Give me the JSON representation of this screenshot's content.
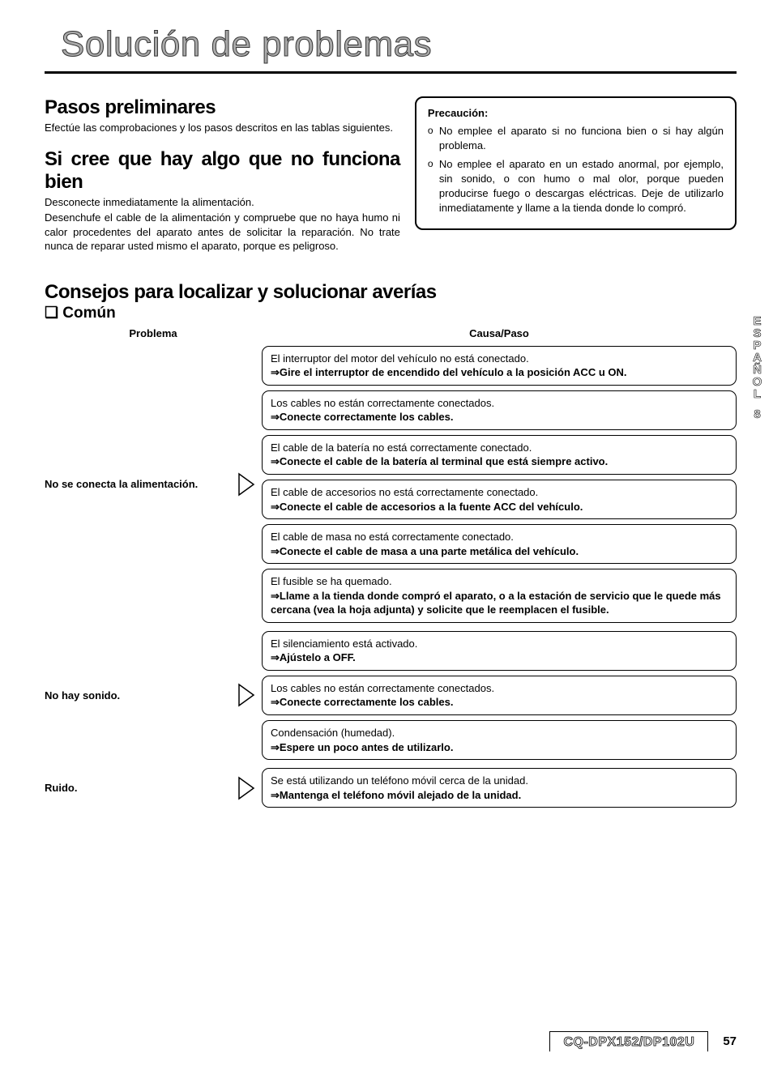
{
  "title": "Solución de problemas",
  "section1": {
    "heading": "Pasos preliminares",
    "text": "Efectúe las comprobaciones y los pasos descritos en las tablas siguientes."
  },
  "section2": {
    "heading": "Si cree que hay algo que no funciona bien",
    "text1": "Desconecte inmediatamente la alimentación.",
    "text2": "Desenchufe el cable de la alimentación y compruebe que no haya humo ni calor procedentes del aparato antes de solicitar la reparación. No trate nunca de reparar usted mismo el aparato, porque es peligroso."
  },
  "caution": {
    "label": "Precaución:",
    "items": [
      "No emplee el aparato si no funciona bien o si hay algún problema.",
      "No emplee el aparato en un estado anormal, por ejemplo, sin sonido, o con humo o mal olor, porque pueden producirse fuego o descargas eléctricas. Deje de utilizarlo inmediatamente y llame a la tienda donde lo compró."
    ]
  },
  "tips": {
    "heading": "Consejos para localizar y solucionar averías",
    "sub": "❏ Común",
    "col_problem": "Problema",
    "col_cause": "Causa/Paso"
  },
  "rows": [
    {
      "problem": "No se conecta la alimentación.",
      "justify": true,
      "causes": [
        {
          "c": "El interruptor del motor del vehículo no está conectado.",
          "s": "⇒Gire el interruptor de encendido del vehículo a la posición ACC u ON."
        },
        {
          "c": "Los cables no están correctamente conectados.",
          "s": "⇒Conecte correctamente los cables."
        },
        {
          "c": "El cable de la batería no está correctamente conectado.",
          "s": "⇒Conecte el cable de la batería al terminal que está siempre activo."
        },
        {
          "c": "El cable de accesorios no está correctamente conectado.",
          "s": "⇒Conecte el cable de accesorios a la fuente ACC del vehículo."
        },
        {
          "c": "El cable de masa no está correctamente conectado.",
          "s": "⇒Conecte el cable de masa a una parte metálica del vehículo."
        },
        {
          "c": "El fusible se ha quemado.",
          "s": "⇒Llame a la tienda donde compró el aparato, o a la estación de servicio que le quede más cercana (vea la hoja adjunta) y solicite que le reemplacen el fusible."
        }
      ]
    },
    {
      "problem": "No hay sonido.",
      "justify": false,
      "causes": [
        {
          "c": "El silenciamiento está activado.",
          "s": "⇒Ajústelo a OFF."
        },
        {
          "c": "Los cables no están correctamente conectados.",
          "s": "⇒Conecte correctamente los cables."
        },
        {
          "c": "Condensación (humedad).",
          "s": "⇒Espere un poco antes de utilizarlo."
        }
      ]
    },
    {
      "problem": "Ruido.",
      "justify": false,
      "causes": [
        {
          "c": "Se está utilizando un teléfono móvil cerca de la unidad.",
          "s": "⇒Mantenga el teléfono móvil alejado de la unidad."
        }
      ]
    }
  ],
  "side": {
    "lang": "ESPAÑOL",
    "num": "8"
  },
  "footer": {
    "model": "CQ-DPX152/DP102U",
    "page": "57"
  }
}
